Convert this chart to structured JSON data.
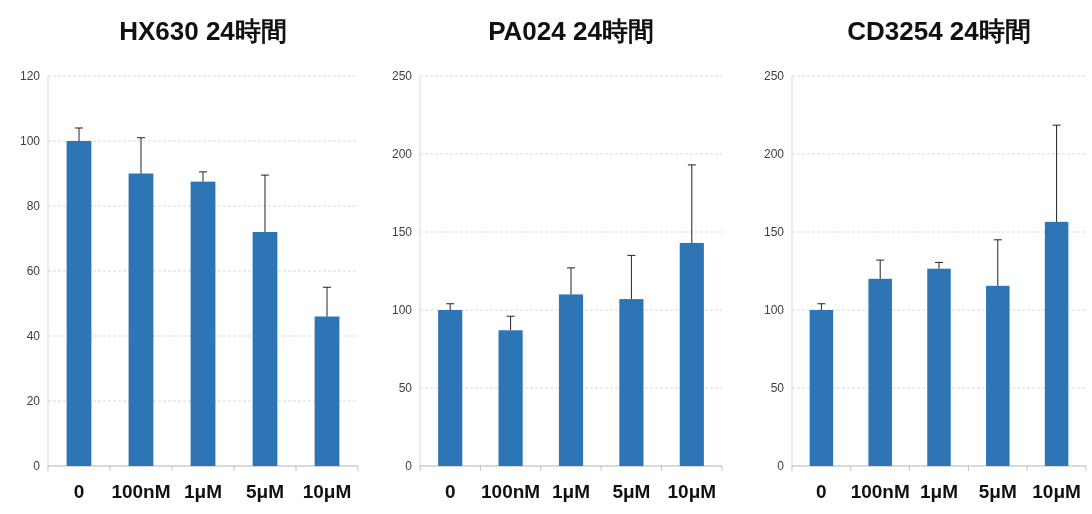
{
  "chart_data": [
    {
      "type": "bar",
      "title": "HX630 24時間",
      "categories": [
        "0",
        "100nM",
        "1μM",
        "5μM",
        "10μM"
      ],
      "values": [
        100,
        90,
        87.5,
        72,
        46
      ],
      "errors": [
        4,
        11,
        3,
        17.5,
        9
      ],
      "color": "#2e75b6",
      "ylim": [
        0,
        120
      ],
      "yticks": [
        0,
        20,
        40,
        60,
        80,
        100,
        120
      ],
      "grid": "y"
    },
    {
      "type": "bar",
      "title": "PA024 24時間",
      "categories": [
        "0",
        "100nM",
        "1μM",
        "5μM",
        "10μM"
      ],
      "values": [
        100,
        87,
        110,
        107,
        143
      ],
      "errors": [
        4,
        9,
        17,
        28,
        50
      ],
      "color": "#2e75b6",
      "ylim": [
        0,
        250
      ],
      "yticks": [
        0,
        50,
        100,
        150,
        200,
        250
      ],
      "grid": "y"
    },
    {
      "type": "bar",
      "title": "CD3254 24時間",
      "categories": [
        "0",
        "100nM",
        "1μM",
        "5μM",
        "10μM"
      ],
      "values": [
        100,
        120,
        126.5,
        115.5,
        156.5
      ],
      "errors": [
        4,
        12,
        4,
        29.5,
        62
      ],
      "color": "#2e75b6",
      "ylim": [
        0,
        250
      ],
      "yticks": [
        0,
        50,
        100,
        150,
        200,
        250
      ],
      "grid": "y"
    }
  ]
}
